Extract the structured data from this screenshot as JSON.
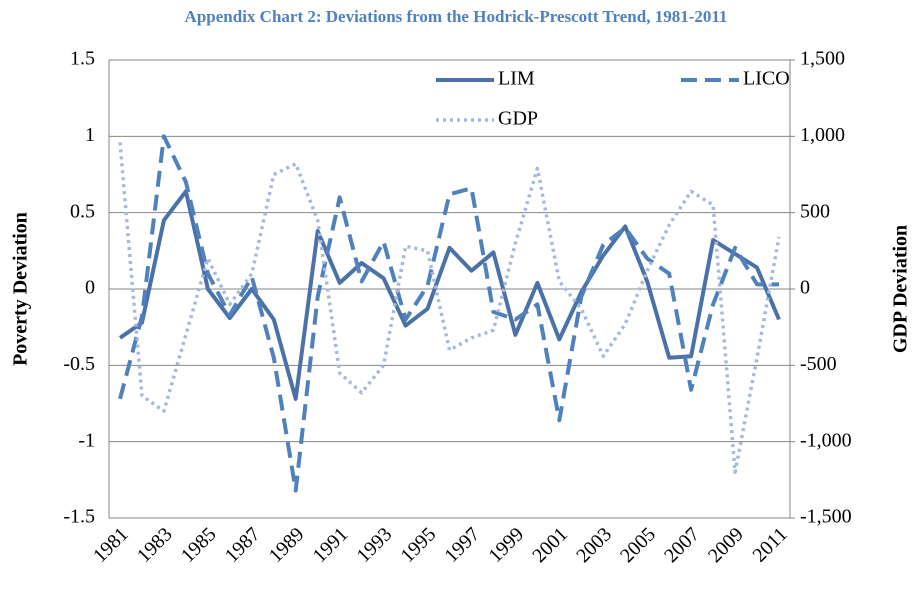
{
  "chart_data": {
    "type": "line",
    "title": "Appendix Chart 2: Deviations from the Hodrick-Prescott Trend, 1981-2011",
    "y_label": "Poverty Deviation",
    "y2_label": "GDP Deviation",
    "categories": [
      "1981",
      null,
      "1983",
      null,
      "1985",
      null,
      "1987",
      null,
      "1989",
      null,
      "1991",
      null,
      "1993",
      null,
      "1995",
      null,
      "1997",
      null,
      "1999",
      null,
      "2001",
      null,
      "2003",
      null,
      "2005",
      null,
      "2007",
      null,
      "2009",
      null,
      "2011"
    ],
    "series": [
      {
        "name": "LIM",
        "color": "#4a72a8",
        "dash": "solid",
        "values": [
          -0.32,
          -0.22,
          0.45,
          0.64,
          0.0,
          -0.19,
          0.0,
          -0.2,
          -0.72,
          0.38,
          0.04,
          0.17,
          0.07,
          -0.24,
          -0.13,
          0.27,
          0.12,
          0.24,
          -0.3,
          0.04,
          -0.33,
          -0.02,
          0.22,
          0.41,
          0.05,
          -0.45,
          -0.44,
          0.32,
          0.23,
          0.14,
          -0.2
        ]
      },
      {
        "name": "LICO",
        "color": "#4f81bd",
        "dash": "dashed",
        "values": [
          -0.72,
          -0.18,
          1.0,
          0.7,
          0.1,
          -0.17,
          0.08,
          -0.45,
          -1.32,
          -0.05,
          0.6,
          0.05,
          0.31,
          -0.2,
          0.02,
          0.62,
          0.66,
          -0.15,
          -0.2,
          -0.1,
          -0.86,
          -0.05,
          0.29,
          0.4,
          0.2,
          0.1,
          -0.66,
          -0.1,
          0.27,
          0.03,
          0.03
        ]
      },
      {
        "name": "GDP",
        "color": "#a5b9da",
        "dash": "dotted",
        "axis": "y2",
        "values": [
          960,
          -700,
          -800,
          -300,
          200,
          -100,
          100,
          750,
          820,
          450,
          -550,
          -680,
          -500,
          280,
          250,
          -400,
          -320,
          -270,
          300,
          790,
          50,
          -130,
          -440,
          -230,
          120,
          420,
          640,
          550,
          -1200,
          -450,
          340
        ]
      }
    ],
    "ylim": [
      -1.5,
      1.5
    ],
    "yticks": [
      -1.5,
      -1,
      -0.5,
      0,
      0.5,
      1,
      1.5
    ],
    "y2lim": [
      -1500,
      1500
    ],
    "y2ticks": [
      {
        "value": -1500,
        "label": "-1,500"
      },
      {
        "value": -1000,
        "label": "-1,000"
      },
      -500,
      0,
      500,
      {
        "value": 1000,
        "label": "1,000"
      },
      {
        "value": 1500,
        "label": "1,500"
      }
    ],
    "grid": true,
    "legend": "top-right"
  }
}
